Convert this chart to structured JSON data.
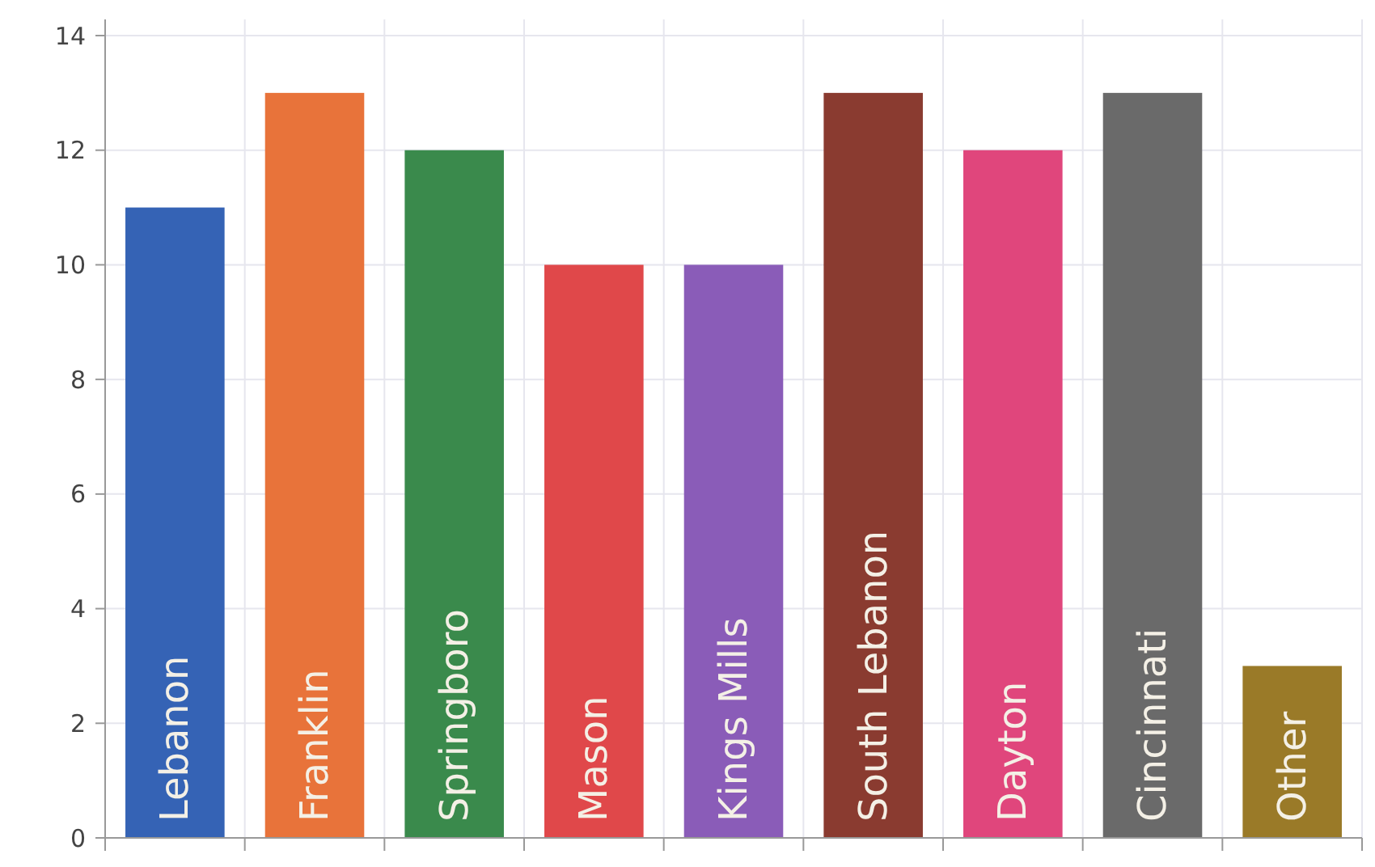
{
  "chart_data": {
    "type": "bar",
    "categories": [
      "Lebanon",
      "Franklin",
      "Springboro",
      "Mason",
      "Kings Mills",
      "South Lebanon",
      "Dayton",
      "Cincinnati",
      "Other"
    ],
    "values": [
      11,
      13,
      12,
      10,
      10,
      13,
      12,
      13,
      3
    ],
    "colors": [
      "#3563b5",
      "#e8733a",
      "#3a8a4c",
      "#e0484a",
      "#8a5cb8",
      "#8a3b30",
      "#e0467c",
      "#6a6a6a",
      "#9a7a28"
    ],
    "ylim": [
      0,
      14
    ],
    "yticks": [
      0,
      2,
      4,
      6,
      8,
      10,
      12,
      14
    ],
    "grid": true
  }
}
